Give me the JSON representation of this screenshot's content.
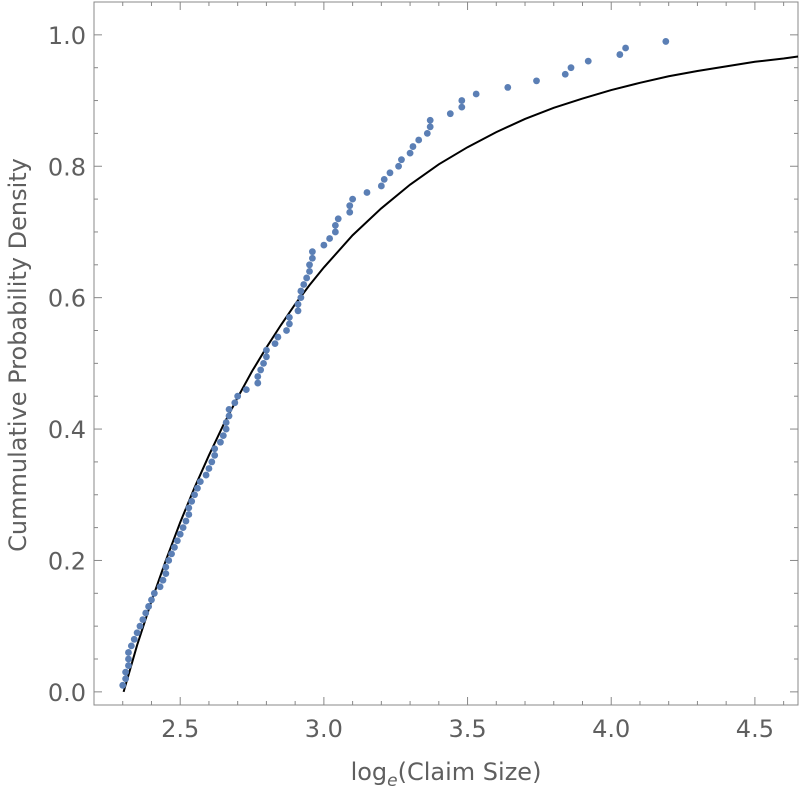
{
  "chart_data": {
    "type": "scatter",
    "title": "",
    "xlabel": {
      "prefix": "log",
      "subscript": "e",
      "suffix": "(Claim Size)"
    },
    "ylabel": "Cummulative Probability Density",
    "xlim": [
      2.2,
      4.65
    ],
    "ylim": [
      -0.02,
      1.05
    ],
    "x_ticks": [
      2.5,
      3.0,
      3.5,
      4.0,
      4.5
    ],
    "x_tick_labels": [
      "2.5",
      "3.0",
      "3.5",
      "4.0",
      "4.5"
    ],
    "y_ticks": [
      0.0,
      0.2,
      0.4,
      0.6,
      0.8,
      1.0
    ],
    "y_tick_labels": [
      "0.0",
      "0.2",
      "0.4",
      "0.6",
      "0.8",
      "1.0"
    ],
    "grid": false,
    "series": [
      {
        "kind": "points",
        "color": "#5b7fb5",
        "points": [
          [
            2.3,
            0.01
          ],
          [
            2.31,
            0.02
          ],
          [
            2.31,
            0.03
          ],
          [
            2.32,
            0.04
          ],
          [
            2.32,
            0.05
          ],
          [
            2.32,
            0.06
          ],
          [
            2.33,
            0.07
          ],
          [
            2.34,
            0.08
          ],
          [
            2.35,
            0.09
          ],
          [
            2.36,
            0.1
          ],
          [
            2.37,
            0.11
          ],
          [
            2.38,
            0.12
          ],
          [
            2.39,
            0.13
          ],
          [
            2.4,
            0.14
          ],
          [
            2.41,
            0.15
          ],
          [
            2.43,
            0.16
          ],
          [
            2.44,
            0.17
          ],
          [
            2.45,
            0.18
          ],
          [
            2.45,
            0.19
          ],
          [
            2.46,
            0.2
          ],
          [
            2.47,
            0.21
          ],
          [
            2.48,
            0.22
          ],
          [
            2.49,
            0.23
          ],
          [
            2.5,
            0.24
          ],
          [
            2.51,
            0.25
          ],
          [
            2.52,
            0.26
          ],
          [
            2.53,
            0.27
          ],
          [
            2.53,
            0.28
          ],
          [
            2.54,
            0.29
          ],
          [
            2.55,
            0.3
          ],
          [
            2.56,
            0.31
          ],
          [
            2.57,
            0.32
          ],
          [
            2.59,
            0.33
          ],
          [
            2.6,
            0.34
          ],
          [
            2.61,
            0.35
          ],
          [
            2.62,
            0.36
          ],
          [
            2.62,
            0.37
          ],
          [
            2.64,
            0.38
          ],
          [
            2.65,
            0.39
          ],
          [
            2.66,
            0.4
          ],
          [
            2.66,
            0.41
          ],
          [
            2.67,
            0.42
          ],
          [
            2.67,
            0.43
          ],
          [
            2.69,
            0.44
          ],
          [
            2.7,
            0.45
          ],
          [
            2.73,
            0.46
          ],
          [
            2.77,
            0.47
          ],
          [
            2.77,
            0.48
          ],
          [
            2.78,
            0.49
          ],
          [
            2.79,
            0.5
          ],
          [
            2.8,
            0.51
          ],
          [
            2.8,
            0.52
          ],
          [
            2.83,
            0.53
          ],
          [
            2.84,
            0.54
          ],
          [
            2.87,
            0.55
          ],
          [
            2.88,
            0.56
          ],
          [
            2.88,
            0.57
          ],
          [
            2.91,
            0.58
          ],
          [
            2.91,
            0.59
          ],
          [
            2.92,
            0.6
          ],
          [
            2.92,
            0.61
          ],
          [
            2.93,
            0.62
          ],
          [
            2.94,
            0.63
          ],
          [
            2.95,
            0.64
          ],
          [
            2.95,
            0.65
          ],
          [
            2.96,
            0.66
          ],
          [
            2.96,
            0.67
          ],
          [
            3.0,
            0.68
          ],
          [
            3.02,
            0.69
          ],
          [
            3.04,
            0.7
          ],
          [
            3.04,
            0.71
          ],
          [
            3.05,
            0.72
          ],
          [
            3.09,
            0.73
          ],
          [
            3.09,
            0.74
          ],
          [
            3.1,
            0.75
          ],
          [
            3.15,
            0.76
          ],
          [
            3.2,
            0.77
          ],
          [
            3.21,
            0.78
          ],
          [
            3.23,
            0.79
          ],
          [
            3.26,
            0.8
          ],
          [
            3.27,
            0.81
          ],
          [
            3.3,
            0.82
          ],
          [
            3.31,
            0.83
          ],
          [
            3.33,
            0.84
          ],
          [
            3.36,
            0.85
          ],
          [
            3.37,
            0.86
          ],
          [
            3.37,
            0.87
          ],
          [
            3.44,
            0.88
          ],
          [
            3.48,
            0.89
          ],
          [
            3.48,
            0.9
          ],
          [
            3.53,
            0.91
          ],
          [
            3.64,
            0.92
          ],
          [
            3.74,
            0.93
          ],
          [
            3.84,
            0.94
          ],
          [
            3.86,
            0.95
          ],
          [
            3.92,
            0.96
          ],
          [
            4.03,
            0.97
          ],
          [
            4.05,
            0.98
          ],
          [
            4.19,
            0.99
          ]
        ]
      },
      {
        "kind": "curve",
        "color": "#000000",
        "points": [
          [
            2.303,
            0.0
          ],
          [
            2.35,
            0.071
          ],
          [
            2.4,
            0.138
          ],
          [
            2.45,
            0.2
          ],
          [
            2.5,
            0.258
          ],
          [
            2.55,
            0.311
          ],
          [
            2.6,
            0.36
          ],
          [
            2.65,
            0.406
          ],
          [
            2.7,
            0.448
          ],
          [
            2.75,
            0.488
          ],
          [
            2.8,
            0.524
          ],
          [
            2.85,
            0.558
          ],
          [
            2.9,
            0.59
          ],
          [
            2.95,
            0.619
          ],
          [
            3.0,
            0.646
          ],
          [
            3.1,
            0.695
          ],
          [
            3.2,
            0.736
          ],
          [
            3.3,
            0.772
          ],
          [
            3.4,
            0.803
          ],
          [
            3.5,
            0.829
          ],
          [
            3.6,
            0.852
          ],
          [
            3.7,
            0.872
          ],
          [
            3.8,
            0.889
          ],
          [
            3.9,
            0.903
          ],
          [
            4.0,
            0.916
          ],
          [
            4.1,
            0.927
          ],
          [
            4.2,
            0.937
          ],
          [
            4.3,
            0.945
          ],
          [
            4.4,
            0.952
          ],
          [
            4.5,
            0.959
          ],
          [
            4.6,
            0.964
          ],
          [
            4.65,
            0.967
          ]
        ]
      }
    ]
  }
}
